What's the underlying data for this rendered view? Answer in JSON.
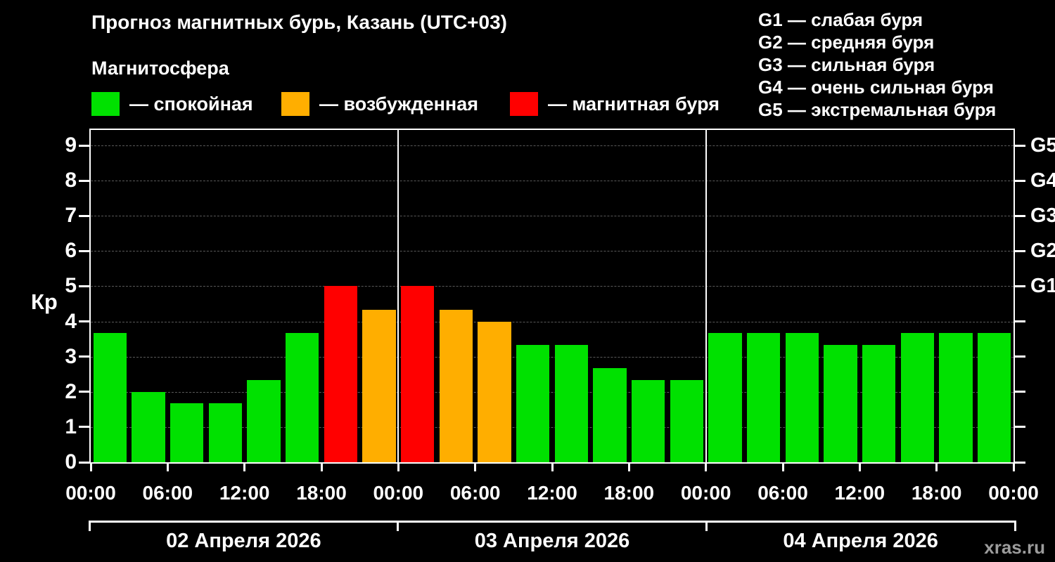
{
  "header": {
    "title": "Прогноз магнитных бурь, Казань (UTC+03)",
    "subtitle": "Магнитосфера",
    "legend": [
      {
        "key": "quiet",
        "label": "— спокойная",
        "color": "#00e100"
      },
      {
        "key": "excited",
        "label": "— возбужденная",
        "color": "#ffae00"
      },
      {
        "key": "storm",
        "label": "— магнитная буря",
        "color": "#ff0000"
      }
    ],
    "g_legend": [
      "G1 — слабая буря",
      "G2 — средняя буря",
      "G3 — сильная буря",
      "G4 — очень сильная буря",
      "G5 — экстремальная буря"
    ]
  },
  "watermark": "xras.ru",
  "chart_data": {
    "type": "bar",
    "title": "Прогноз магнитных бурь, Казань (UTC+03)",
    "ylabel": "Кр",
    "ylim": [
      0,
      9
    ],
    "yticks": [
      0,
      1,
      2,
      3,
      4,
      5,
      6,
      7,
      8,
      9
    ],
    "grid": "horizontal dashed lines at each integer Kp",
    "legend_position": "top",
    "right_axis_labels": [
      {
        "value": 5,
        "label": "G1"
      },
      {
        "value": 6,
        "label": "G2"
      },
      {
        "value": 7,
        "label": "G3"
      },
      {
        "value": 8,
        "label": "G4"
      },
      {
        "value": 9,
        "label": "G5"
      }
    ],
    "x_tick_labels": [
      "00:00",
      "06:00",
      "12:00",
      "18:00",
      "00:00",
      "06:00",
      "12:00",
      "18:00",
      "00:00",
      "06:00",
      "12:00",
      "18:00",
      "00:00"
    ],
    "bar_interval_hours": 3,
    "days": [
      {
        "date": "02 Апреля 2026",
        "values": [
          3.67,
          2.0,
          1.67,
          1.67,
          2.33,
          3.67,
          5.0,
          4.33
        ]
      },
      {
        "date": "03 Апреля 2026",
        "values": [
          5.0,
          4.33,
          4.0,
          3.33,
          3.33,
          2.67,
          2.33,
          2.33
        ]
      },
      {
        "date": "04 Апреля 2026",
        "values": [
          3.67,
          3.67,
          3.67,
          3.33,
          3.33,
          3.67,
          3.67,
          3.67
        ]
      }
    ],
    "color_rules": {
      "excited_at": 4,
      "storm_at": 5
    },
    "colors": {
      "quiet": "#00e100",
      "excited": "#ffae00",
      "storm": "#ff0000"
    }
  }
}
